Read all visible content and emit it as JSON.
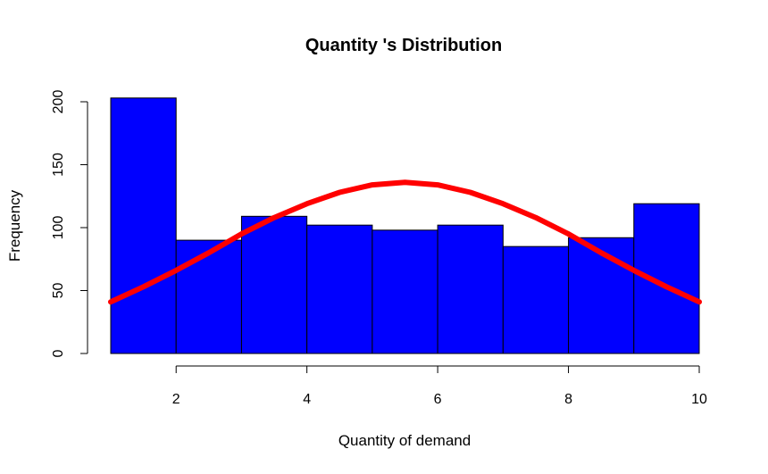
{
  "chart_data": {
    "type": "bar",
    "title": "Quantity 's Distribution",
    "xlabel": "Quantity of demand",
    "ylabel": "Frequency",
    "xlim": [
      1,
      10
    ],
    "ylim": [
      0,
      200
    ],
    "x_ticks": [
      2,
      4,
      6,
      8,
      10
    ],
    "y_ticks": [
      0,
      50,
      100,
      150,
      200
    ],
    "bins": [
      {
        "start": 1,
        "end": 2,
        "count": 203
      },
      {
        "start": 2,
        "end": 3,
        "count": 90
      },
      {
        "start": 3,
        "end": 4,
        "count": 109
      },
      {
        "start": 4,
        "end": 5,
        "count": 102
      },
      {
        "start": 5,
        "end": 6,
        "count": 98
      },
      {
        "start": 6,
        "end": 7,
        "count": 102
      },
      {
        "start": 7,
        "end": 8,
        "count": 85
      },
      {
        "start": 8,
        "end": 9,
        "count": 92
      },
      {
        "start": 9,
        "end": 10,
        "count": 119
      }
    ],
    "bar_color": "#0000ff",
    "bar_border_color": "#000000",
    "curve": {
      "type": "normal-density-overlay",
      "color": "#ff0000",
      "x": [
        1,
        1.5,
        2,
        2.5,
        3,
        3.5,
        4,
        4.5,
        5,
        5.5,
        6,
        6.5,
        7,
        7.5,
        8,
        8.5,
        9,
        9.5,
        10
      ],
      "y": [
        41,
        53,
        66,
        80,
        95,
        108,
        119,
        128,
        134,
        136,
        134,
        128,
        119,
        108,
        95,
        80,
        66,
        53,
        41
      ]
    },
    "grid": false,
    "legend": "none"
  }
}
